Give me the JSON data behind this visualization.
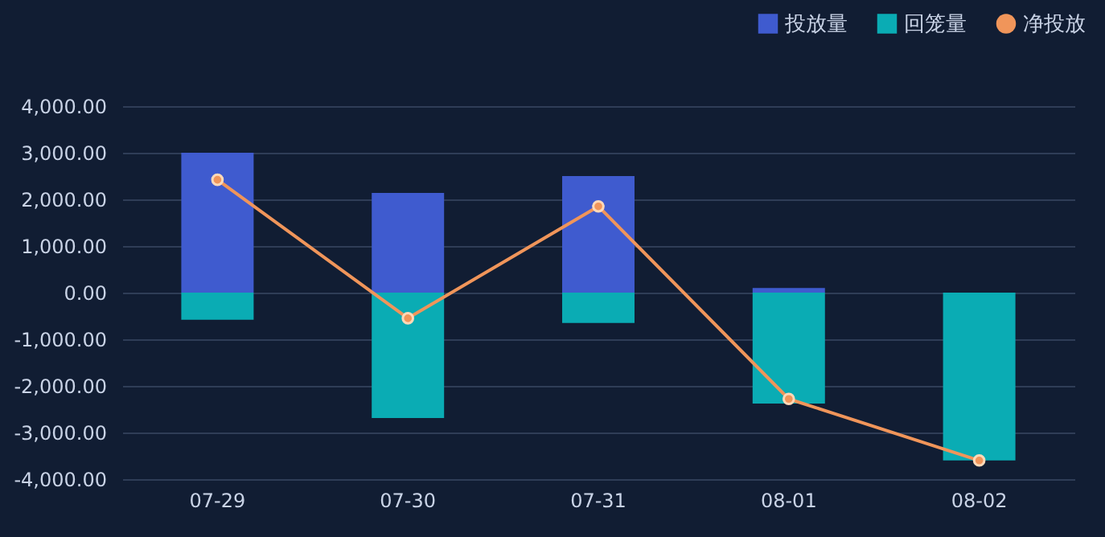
{
  "chart_data": {
    "type": "bar",
    "stacked": true,
    "categories": [
      "07-29",
      "07-30",
      "07-31",
      "08-01",
      "08-02"
    ],
    "series": [
      {
        "name": "投放量",
        "color": "#3f5bcf",
        "values": [
          3000,
          2140,
          2500,
          100,
          0
        ]
      },
      {
        "name": "回笼量",
        "color": "#0aacb4",
        "values": [
          -580,
          -2690,
          -650,
          -2380,
          -3600
        ]
      },
      {
        "name": "净投放",
        "type": "line",
        "color": "#f0955a",
        "marker": "circle",
        "values": [
          2420,
          -550,
          1850,
          -2280,
          -3600
        ]
      }
    ],
    "ylim": [
      -4000,
      4000
    ],
    "yticks": [
      {
        "value": -4000,
        "label": "-4,000.00"
      },
      {
        "value": -3000,
        "label": "-3,000.00"
      },
      {
        "value": -2000,
        "label": "-2,000.00"
      },
      {
        "value": -1000,
        "label": "-1,000.00"
      },
      {
        "value": 0,
        "label": "0.00"
      },
      {
        "value": 1000,
        "label": "1,000.00"
      },
      {
        "value": 2000,
        "label": "2,000.00"
      },
      {
        "value": 3000,
        "label": "3,000.00"
      },
      {
        "value": 4000,
        "label": "4,000.00"
      }
    ],
    "grid": "y",
    "legend": "top right"
  }
}
